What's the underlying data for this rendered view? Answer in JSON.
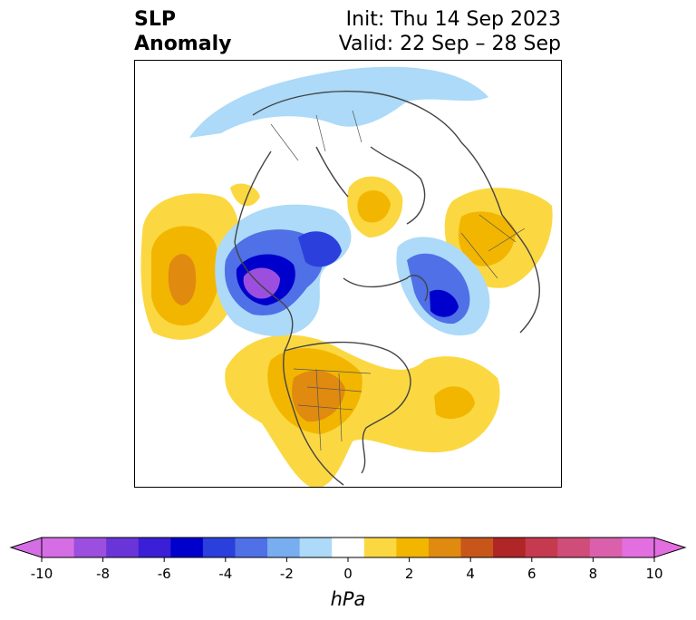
{
  "title": {
    "left_line1": "SLP",
    "left_line2": "Anomaly",
    "right_line1": "Init: Thu 14 Sep 2023",
    "right_line2": "Valid: 22 Sep – 28 Sep"
  },
  "colorbar": {
    "unit_label": "hPa",
    "tick_labels": [
      "-10",
      "-8",
      "-6",
      "-4",
      "-2",
      "0",
      "2",
      "4",
      "6",
      "8",
      "10"
    ],
    "colors": [
      "#d56ee5",
      "#9c4fde",
      "#6a35d8",
      "#3a1fd6",
      "#0000cc",
      "#2b3fdc",
      "#4f70e6",
      "#78aef0",
      "#acdaf8",
      "#ffffff",
      "#fbd842",
      "#f2b600",
      "#e08a10",
      "#c8561a",
      "#b02525",
      "#c63a4f",
      "#d04d7a",
      "#da60ac",
      "#e36ee0"
    ],
    "min": -10,
    "max": 10,
    "extend": "both"
  }
}
